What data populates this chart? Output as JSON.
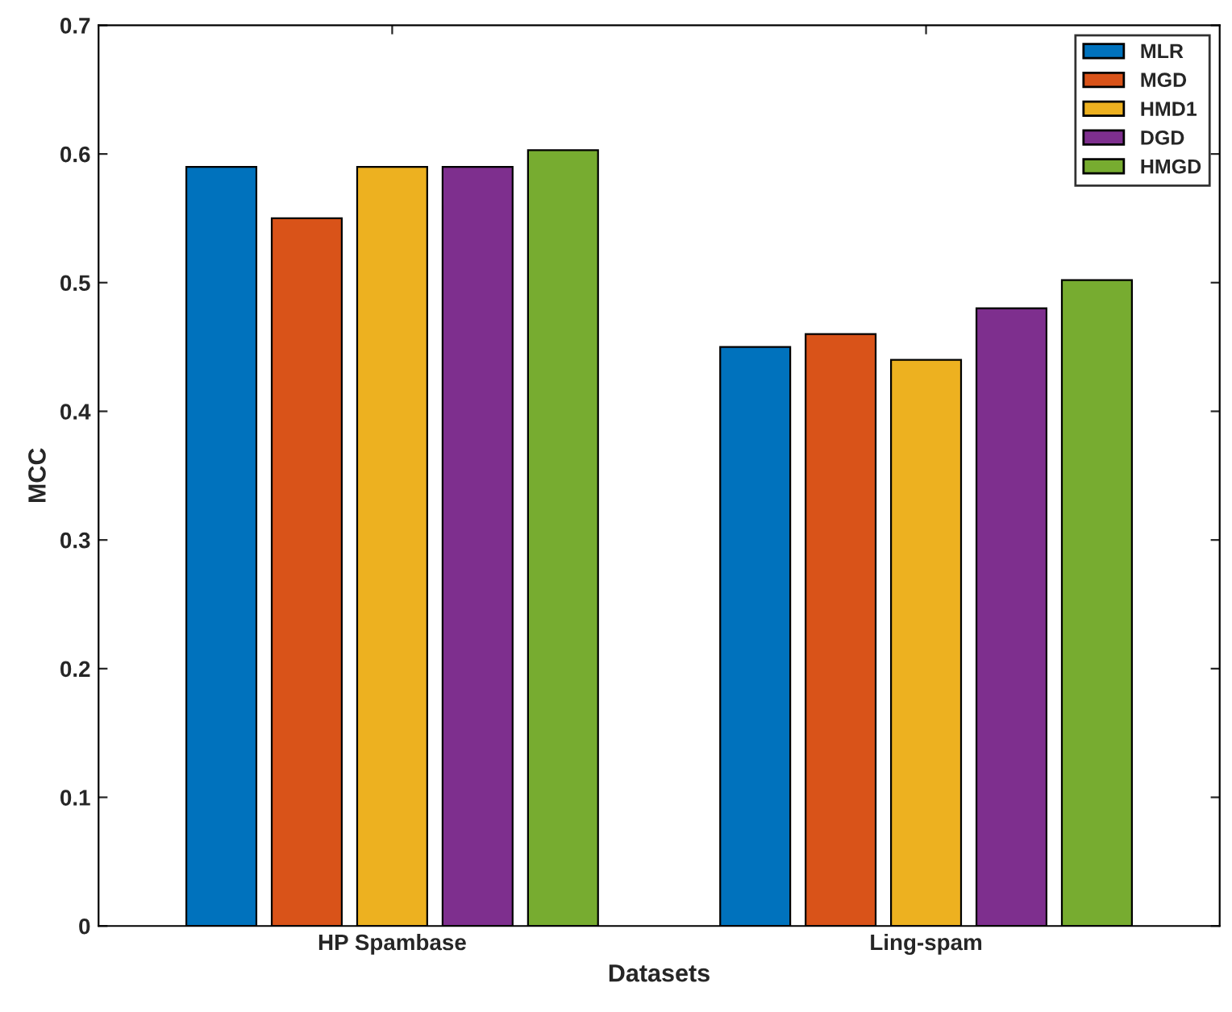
{
  "chart_data": {
    "type": "bar",
    "xlabel": "Datasets",
    "ylabel": "MCC",
    "categories": [
      "HP Spambase",
      "Ling-spam"
    ],
    "series": [
      {
        "name": "MLR",
        "color": "#0072bd",
        "values": [
          0.59,
          0.45
        ]
      },
      {
        "name": "MGD",
        "color": "#d95319",
        "values": [
          0.55,
          0.46
        ]
      },
      {
        "name": "HMD1",
        "color": "#edb120",
        "values": [
          0.59,
          0.44
        ]
      },
      {
        "name": "DGD",
        "color": "#7e2f8e",
        "values": [
          0.59,
          0.48
        ]
      },
      {
        "name": "HMGD",
        "color": "#77ac30",
        "values": [
          0.603,
          0.502
        ]
      }
    ],
    "ylim": [
      0,
      0.7
    ],
    "yticks": [
      0,
      0.1,
      0.2,
      0.3,
      0.4,
      0.5,
      0.6,
      0.7
    ],
    "grid": false,
    "legend": "top right"
  }
}
